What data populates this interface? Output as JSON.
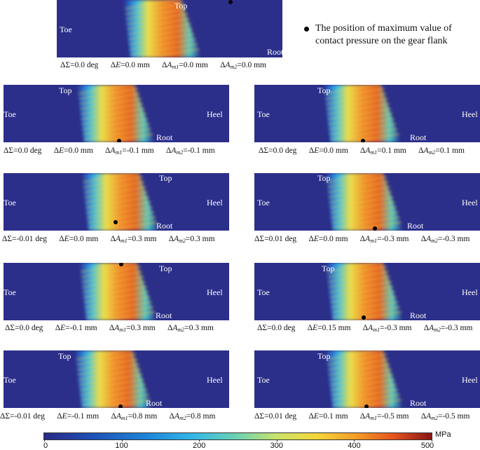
{
  "legend": {
    "text": "The position of maximum value of contact pressure on the gear flank"
  },
  "labels": {
    "top": "Top",
    "root": "Root",
    "toe": "Toe",
    "heel": "Heel"
  },
  "panels": [
    {
      "id": "p0",
      "caption": {
        "sigma": "0.0 deg",
        "e": "0.0 mm",
        "am1": "0.0 mm",
        "am2": "0.0 mm"
      }
    },
    {
      "id": "p1",
      "caption": {
        "sigma": "0.0 deg",
        "e": "0.0 mm",
        "am1": "-0.1 mm",
        "am2": "-0.1 mm"
      }
    },
    {
      "id": "p2",
      "caption": {
        "sigma": "0.0 deg",
        "e": "0.0 mm",
        "am1": "0.1 mm",
        "am2": "0.1 mm"
      }
    },
    {
      "id": "p3",
      "caption": {
        "sigma": "-0.01 deg",
        "e": "0.0 mm",
        "am1": "0.3 mm",
        "am2": "0.3 mm"
      }
    },
    {
      "id": "p4",
      "caption": {
        "sigma": "0.01 deg",
        "e": "0.0 mm",
        "am1": "-0.3 mm",
        "am2": "-0.3 mm"
      }
    },
    {
      "id": "p5",
      "caption": {
        "sigma": "0.0 deg",
        "e": "-0.1 mm",
        "am1": "0.3 mm",
        "am2": "0.3 mm"
      }
    },
    {
      "id": "p6",
      "caption": {
        "sigma": "0.0 deg",
        "e": "0.15 mm",
        "am1": "-0.3 mm",
        "am2": "-0.3 mm"
      }
    },
    {
      "id": "p7",
      "caption": {
        "sigma": "-0.01 deg",
        "e": "-0.1 mm",
        "am1": "0.8 mm",
        "am2": "0.8 mm"
      }
    },
    {
      "id": "p8",
      "caption": {
        "sigma": "0.01 deg",
        "e": "0.1 mm",
        "am1": "-0.5 mm",
        "am2": "-0.5 mm"
      }
    }
  ],
  "colorbar": {
    "unit": "MPa",
    "ticks": [
      "0",
      "100",
      "200",
      "300",
      "400",
      "500"
    ],
    "range": [
      0,
      500
    ]
  },
  "colors": {
    "background": "#2b2f8a",
    "low": "#2a2a86",
    "high": "#8a1414"
  }
}
